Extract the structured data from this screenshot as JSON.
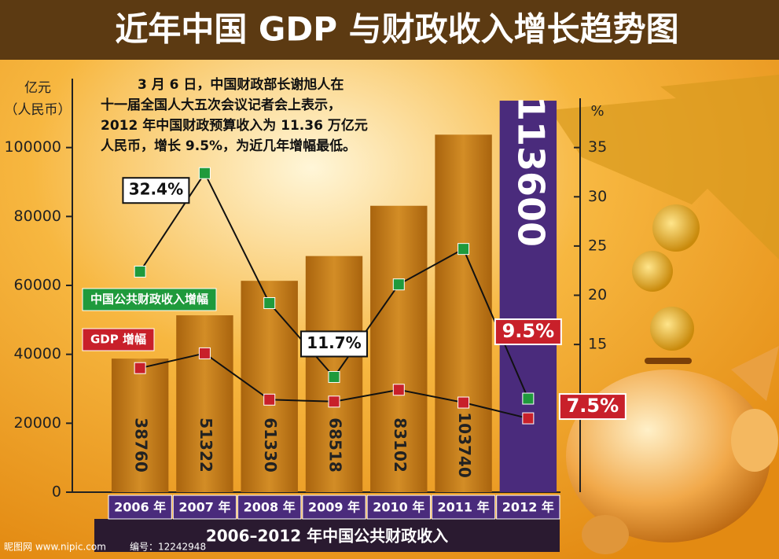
{
  "chart_data": {
    "type": "bar",
    "title": "近年中国 GDP 与财政收入增长趋势图",
    "annotation": [
      "3 月 6 日，中国财政部长谢旭人在",
      "十一届全国人大五次会议记者会上表示，",
      "2012 年中国财政预算收入为 11.36 万亿元",
      "人民币，增长 9.5%，为近几年增幅最低。"
    ],
    "ylabel": [
      "亿元",
      "（人民币）"
    ],
    "y2label": "%",
    "xlabel": "2006–2012 年中国公共财政收入",
    "categories": [
      "2006 年",
      "2007 年",
      "2008 年",
      "2009 年",
      "2010 年",
      "2011 年",
      "2012 年"
    ],
    "values": [
      38760,
      51322,
      61330,
      68518,
      83102,
      103740,
      113600
    ],
    "colors": [
      "#c27c1c",
      "#c27c1c",
      "#c27c1c",
      "#c27c1c",
      "#c27c1c",
      "#c27c1c",
      "#4a2b7c"
    ],
    "ylim": [
      0,
      120000
    ],
    "yticks": [
      0,
      20000,
      40000,
      60000,
      80000,
      100000
    ],
    "y2lim": [
      0,
      42
    ],
    "y2ticks": [
      15,
      20,
      25,
      30,
      35
    ],
    "series": [
      {
        "name": "中国公共财政收入增幅",
        "color": "#1f9a3c",
        "axis": "y2",
        "values": [
          22.4,
          32.4,
          19.2,
          11.7,
          21.1,
          24.7,
          9.5
        ],
        "value_labels": [
          null,
          "32.4%",
          null,
          "11.7%",
          null,
          null,
          "9.5%"
        ]
      },
      {
        "name": "GDP 增幅",
        "color": "#c8202a",
        "axis": "y2",
        "values": [
          12.6,
          14.1,
          9.4,
          9.2,
          10.4,
          9.1,
          7.5
        ],
        "value_labels": [
          null,
          null,
          null,
          null,
          null,
          null,
          "7.5%"
        ]
      }
    ],
    "watermark": [
      "昵图网 www.nipic.com",
      "编号：12242948"
    ]
  }
}
